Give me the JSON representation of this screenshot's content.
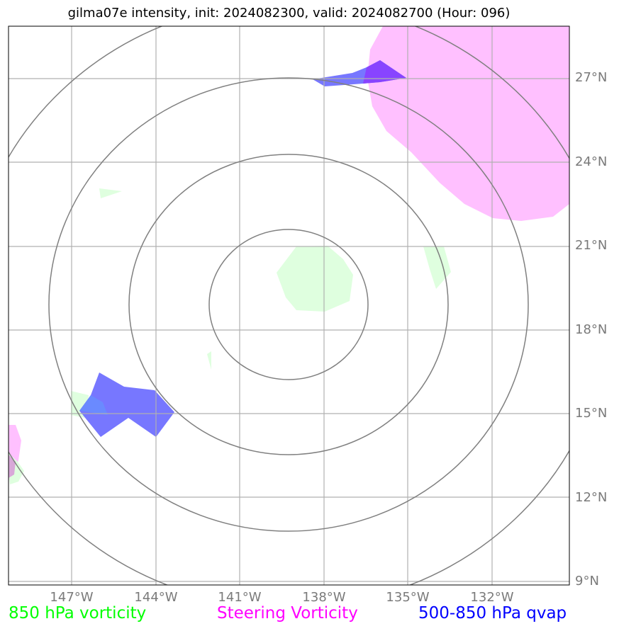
{
  "title": "gilma07e intensity, init: 2024082300, valid: 2024082700 (Hour: 096)",
  "lat_labels": [
    "27°N",
    "24°N",
    "21°N",
    "18°N",
    "15°N",
    "12°N",
    "9°N"
  ],
  "lon_labels": [
    "147°W",
    "144°W",
    "141°W",
    "138°W",
    "135°W",
    "132°W"
  ],
  "legend": {
    "vort850": "850 hPa vorticity",
    "steering": "Steering Vorticity",
    "qvap": "500-850 hPa qvap"
  },
  "colors": {
    "vort850": "#00ff00",
    "steering": "#ff00ff",
    "qvap": "#0000ff",
    "vort850_fill": "#dfffdf",
    "steering_fill": "#ffc0ff",
    "qvap_fill": "#7777ff",
    "overlap_fill": "#8844ff",
    "grid": "#b0b0b0",
    "rings": "#808080",
    "axis_label": "#7a7a7a"
  },
  "chart_data": {
    "type": "map",
    "lat_ticks": [
      27,
      24,
      21,
      18,
      15,
      12,
      9
    ],
    "lon_ticks": [
      -147,
      -144,
      -141,
      -138,
      -135,
      -132
    ],
    "lat_range": [
      8.9,
      28.8
    ],
    "lon_range": [
      -149.2,
      -129.2
    ],
    "range_rings": 4,
    "layers": [
      "850 hPa vorticity",
      "Steering Vorticity",
      "500-850 hPa qvap"
    ]
  }
}
